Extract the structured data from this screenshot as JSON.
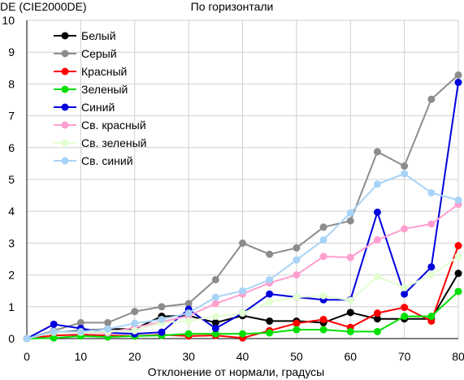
{
  "chart_data": {
    "type": "line",
    "title": "По горизонтали",
    "ylabel": "DE (CIE2000DE)",
    "xlabel": "Отклонение от нормали, градусы",
    "xlim": [
      0,
      80
    ],
    "ylim": [
      0,
      10
    ],
    "x_ticks": [
      0,
      10,
      20,
      30,
      40,
      50,
      60,
      70,
      80
    ],
    "y_ticks": [
      0,
      1,
      2,
      3,
      4,
      5,
      6,
      7,
      8,
      9,
      10
    ],
    "grid": true,
    "legend_position": "top-left",
    "x": [
      0,
      5,
      10,
      15,
      20,
      25,
      30,
      35,
      40,
      45,
      50,
      55,
      60,
      65,
      70,
      75,
      80
    ],
    "series": [
      {
        "name": "Белый",
        "color": "#000000",
        "values": [
          0.0,
          0.2,
          0.25,
          0.3,
          0.3,
          0.7,
          0.72,
          0.5,
          0.72,
          0.55,
          0.55,
          0.5,
          0.82,
          0.62,
          0.62,
          0.62,
          2.05
        ]
      },
      {
        "name": "Серый",
        "color": "#8c8c8c",
        "values": [
          0.0,
          0.25,
          0.5,
          0.5,
          0.85,
          1.0,
          1.1,
          1.85,
          3.0,
          2.65,
          2.85,
          3.5,
          3.7,
          5.87,
          5.42,
          7.52,
          8.28
        ]
      },
      {
        "name": "Красный",
        "color": "#ff0000",
        "values": [
          0.0,
          0.1,
          0.12,
          0.1,
          0.08,
          0.12,
          0.08,
          0.1,
          0.02,
          0.25,
          0.48,
          0.6,
          0.35,
          0.8,
          0.98,
          0.55,
          2.92
        ]
      },
      {
        "name": "Зеленый",
        "color": "#00e000",
        "values": [
          0.0,
          0.02,
          0.08,
          0.05,
          0.08,
          0.1,
          0.15,
          0.15,
          0.15,
          0.18,
          0.28,
          0.28,
          0.22,
          0.22,
          0.7,
          0.7,
          1.48
        ]
      },
      {
        "name": "Синий",
        "color": "#0000dd",
        "values": [
          0.0,
          0.45,
          0.32,
          0.18,
          0.15,
          0.2,
          0.92,
          0.32,
          0.8,
          1.4,
          1.3,
          1.22,
          1.22,
          3.97,
          1.4,
          2.25,
          8.05
        ]
      },
      {
        "name": "Св. красный",
        "color": "#ff9fcf",
        "values": [
          0.0,
          0.2,
          0.2,
          0.18,
          0.35,
          0.52,
          0.72,
          1.1,
          1.4,
          1.75,
          2.0,
          2.58,
          2.55,
          3.1,
          3.45,
          3.6,
          4.22
        ]
      },
      {
        "name": "Св. зеленый",
        "color": "#e2ffd2",
        "values": [
          0.0,
          0.2,
          0.2,
          0.22,
          0.25,
          0.5,
          0.55,
          0.7,
          0.8,
          1.15,
          1.3,
          1.35,
          1.2,
          1.95,
          1.6,
          2.0,
          2.58
        ]
      },
      {
        "name": "Св. синий",
        "color": "#a9d3f7",
        "values": [
          0.0,
          0.22,
          0.22,
          0.3,
          0.48,
          0.6,
          0.8,
          1.3,
          1.5,
          1.85,
          2.47,
          3.1,
          3.95,
          4.85,
          5.18,
          4.58,
          4.35
        ]
      }
    ]
  }
}
